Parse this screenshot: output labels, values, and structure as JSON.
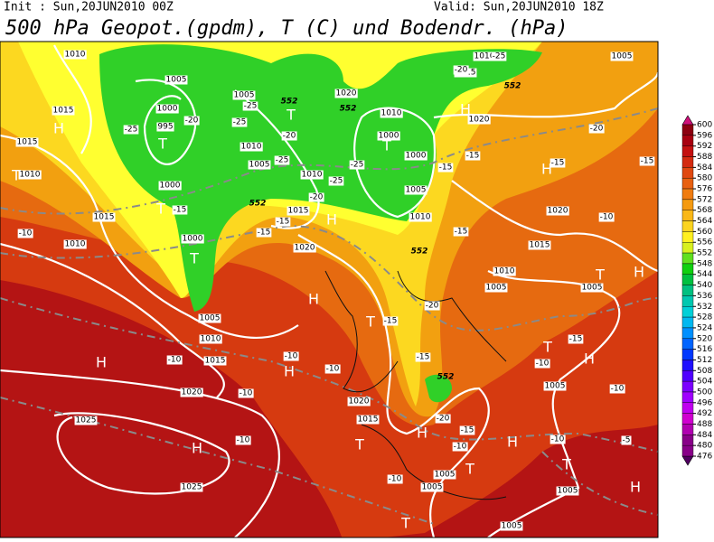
{
  "header": {
    "init": "Init : Sun,20JUN2010 00Z",
    "valid": "Valid: Sun,20JUN2010 18Z",
    "title": "500 hPa Geopot.(gpdm), T (C) und Bodendr. (hPa)"
  },
  "colorbar": {
    "ticks": [
      600,
      596,
      592,
      588,
      584,
      580,
      576,
      572,
      568,
      564,
      560,
      556,
      552,
      548,
      544,
      540,
      536,
      532,
      528,
      524,
      520,
      516,
      512,
      508,
      504,
      500,
      496,
      492,
      488,
      484,
      480,
      476
    ],
    "colors": [
      "#d0107a",
      "#8c0010",
      "#a80010",
      "#c41010",
      "#d42a10",
      "#e04810",
      "#e86010",
      "#f07c10",
      "#f59a10",
      "#fab818",
      "#fcd420",
      "#fff020",
      "#d8f020",
      "#60e020",
      "#10d010",
      "#00c040",
      "#00c080",
      "#00c8b0",
      "#00d0d8",
      "#00b8f0",
      "#0090ff",
      "#0064ff",
      "#0038ff",
      "#2010ff",
      "#5000ff",
      "#7c00ff",
      "#a000ff",
      "#c000f0",
      "#d000d0",
      "#b000b0",
      "#880088",
      "#500060"
    ]
  },
  "map": {
    "pressure_labels": [
      1010,
      1005,
      1015,
      1015,
      1000,
      995,
      1005,
      1010,
      1005,
      1010,
      1020,
      1010,
      1000,
      1000,
      1005,
      1010,
      1015,
      1010,
      1020,
      1010,
      1015,
      1010,
      1000,
      1000,
      1015,
      1020,
      1005,
      1010,
      1015,
      1020,
      1025,
      1025,
      1020,
      1015,
      1005,
      1005,
      1005,
      1005,
      1005,
      1005,
      1005,
      1010,
      1015,
      1020,
      1005
    ],
    "temperature_labels": [
      -25,
      -20,
      -25,
      -20,
      -25,
      -25,
      -20,
      -25,
      -25,
      -25,
      -20,
      -15,
      -15,
      -15,
      -10,
      -15,
      -15,
      -15,
      -20,
      -15,
      -15,
      -20,
      -15,
      -10,
      -15,
      -10,
      -20,
      -15,
      -15,
      -10,
      -10,
      -10,
      -10,
      -10,
      -10,
      -10,
      -10,
      -10,
      -5
    ],
    "pressure_centers": [
      "H",
      "T",
      "T",
      "T",
      "H",
      "H",
      "T",
      "H",
      "H",
      "H",
      "T",
      "H",
      "H",
      "T",
      "T",
      "T",
      "H",
      "T",
      "H",
      "T",
      "H",
      "T",
      "T",
      "H",
      "H",
      "T"
    ],
    "contour_552_labels": [
      552,
      552,
      552,
      552,
      552,
      552
    ]
  }
}
